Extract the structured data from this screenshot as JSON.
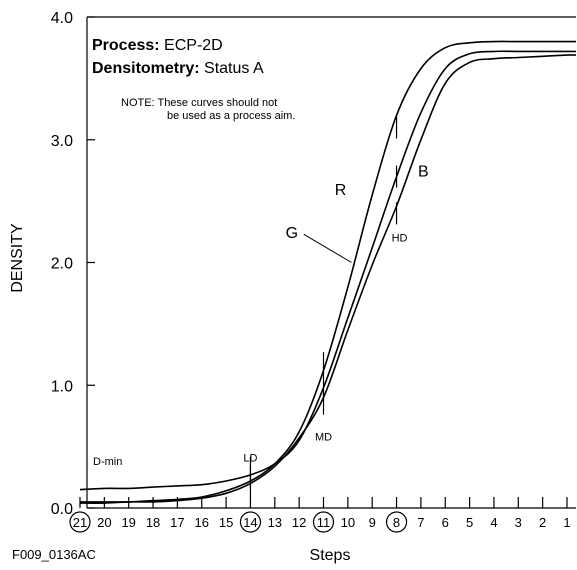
{
  "chart_data": {
    "type": "line",
    "title_lines": [
      {
        "label": "Process:",
        "value": "ECP-2D"
      },
      {
        "label": "Densitometry:",
        "value": "Status A"
      }
    ],
    "note_line1": "NOTE: These curves should not",
    "note_line2": "be used as a process aim.",
    "ylabel": "DENSITY",
    "xlabel": "Steps",
    "figure_id": "F009_0136AC",
    "ylim": [
      0,
      4
    ],
    "y_ticks": [
      "0.0",
      "1.0",
      "2.0",
      "3.0",
      "4.0"
    ],
    "x_steps": [
      "21",
      "20",
      "19",
      "18",
      "17",
      "16",
      "15",
      "14",
      "13",
      "12",
      "11",
      "10",
      "9",
      "8",
      "7",
      "6",
      "5",
      "4",
      "3",
      "2",
      "1"
    ],
    "circled_steps": [
      "21",
      "14",
      "11",
      "8"
    ],
    "series": [
      {
        "name": "R",
        "x": [
          21,
          20,
          19,
          18,
          17,
          16,
          15,
          14,
          13,
          12,
          11,
          10,
          9,
          8,
          7,
          6,
          5,
          4,
          3,
          2,
          1
        ],
        "values": [
          0.05,
          0.05,
          0.05,
          0.06,
          0.07,
          0.09,
          0.14,
          0.22,
          0.36,
          0.62,
          1.12,
          1.8,
          2.55,
          3.2,
          3.58,
          3.75,
          3.79,
          3.8,
          3.8,
          3.8,
          3.8
        ]
      },
      {
        "name": "G",
        "x": [
          21,
          20,
          19,
          18,
          17,
          16,
          15,
          14,
          13,
          12,
          11,
          10,
          9,
          8,
          7,
          6,
          5,
          4,
          3,
          2,
          1
        ],
        "values": [
          0.15,
          0.16,
          0.16,
          0.17,
          0.18,
          0.19,
          0.22,
          0.27,
          0.36,
          0.55,
          0.98,
          1.55,
          2.12,
          2.7,
          3.22,
          3.58,
          3.7,
          3.72,
          3.72,
          3.72,
          3.72
        ]
      },
      {
        "name": "B",
        "x": [
          21,
          20,
          19,
          18,
          17,
          16,
          15,
          14,
          13,
          12,
          11,
          10,
          9,
          8,
          7,
          6,
          5,
          4,
          3,
          2,
          1
        ],
        "values": [
          0.04,
          0.04,
          0.05,
          0.05,
          0.06,
          0.08,
          0.12,
          0.2,
          0.34,
          0.57,
          0.9,
          1.45,
          1.98,
          2.46,
          3.0,
          3.46,
          3.63,
          3.66,
          3.67,
          3.68,
          3.69
        ]
      }
    ],
    "step_markers": [
      {
        "label": "LD",
        "step": 14,
        "values": [
          0.17,
          0.25,
          0.33
        ]
      },
      {
        "label": "MD",
        "step": 11,
        "values": [
          0.85,
          1.0,
          1.18
        ]
      },
      {
        "label": "HD",
        "step": 8,
        "values": [
          2.4,
          2.7,
          3.1
        ]
      }
    ],
    "dmin_label": "D-min",
    "curve_labels": [
      {
        "text": "R",
        "x": 10.3,
        "y": 2.55
      },
      {
        "text": "B",
        "x": 6.9,
        "y": 2.7
      },
      {
        "text": "G",
        "x": 12.3,
        "y": 2.2
      }
    ],
    "grid": false
  }
}
